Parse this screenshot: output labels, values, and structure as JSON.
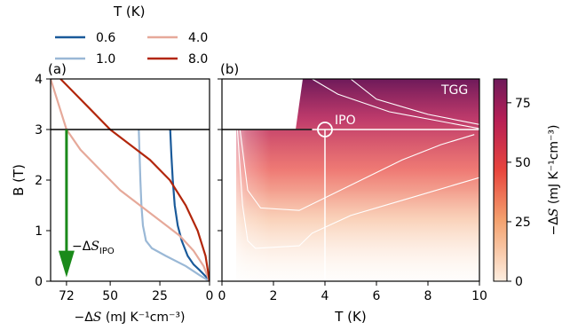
{
  "legend": {
    "title": "T (K)",
    "entries": [
      {
        "label": "0.6",
        "color": "#1a5a9a"
      },
      {
        "label": "1.0",
        "color": "#9ab8d6"
      },
      {
        "label": "4.0",
        "color": "#e6a99a"
      },
      {
        "label": "8.0",
        "color": "#b2260b"
      }
    ]
  },
  "panel_a": {
    "label": "(a)",
    "ylabel": "B (T)",
    "xlabel_prefix": "−Δ",
    "xlabel_S": "S",
    "xlabel_units": " (mJ K⁻¹cm⁻³)",
    "annotation_prefix": "−Δ",
    "annotation_S": "S",
    "annotation_sub": "IPO"
  },
  "panel_b": {
    "label": "(b)",
    "xlabel": "T (K)",
    "tgg_label": "TGG",
    "ipo_label": "IPO"
  },
  "colorbar": {
    "label_prefix": "−Δ",
    "label_S": "S",
    "label_units": " (mJ K⁻¹cm⁻³)",
    "ticks": [
      "0",
      "25",
      "50",
      "75"
    ]
  },
  "chart_data": [
    {
      "type": "line",
      "panel": "(a)",
      "xlabel": "−ΔS (mJ K⁻¹cm⁻³)",
      "ylabel": "B (T)",
      "xlim": [
        80,
        0
      ],
      "ylim": [
        0,
        4
      ],
      "xticks": [
        "72",
        "50",
        "25",
        "0"
      ],
      "yticks": [
        "0",
        "1",
        "2",
        "3",
        "4"
      ],
      "reference_line_B": 3,
      "arrow": {
        "x": 72,
        "from_B": 3,
        "to_B": 0.2,
        "color": "#1a8a1a"
      },
      "series": [
        {
          "name": "0.6",
          "color": "#1a5a9a",
          "points": [
            [
              0,
              0
            ],
            [
              2,
              0.1
            ],
            [
              5,
              0.22
            ],
            [
              8,
              0.33
            ],
            [
              11,
              0.5
            ],
            [
              14,
              0.8
            ],
            [
              16,
              1.1
            ],
            [
              17.5,
              1.5
            ],
            [
              18.5,
              2.0
            ],
            [
              19.2,
              2.5
            ],
            [
              19.8,
              3.0
            ]
          ]
        },
        {
          "name": "1.0",
          "color": "#9ab8d6",
          "points": [
            [
              0,
              0
            ],
            [
              5,
              0.12
            ],
            [
              12,
              0.3
            ],
            [
              22,
              0.5
            ],
            [
              29,
              0.65
            ],
            [
              32,
              0.8
            ],
            [
              33.5,
              1.1
            ],
            [
              34.3,
              1.5
            ],
            [
              34.8,
              2.0
            ],
            [
              35.2,
              2.5
            ],
            [
              35.6,
              3.0
            ]
          ]
        },
        {
          "name": "4.0",
          "color": "#e6a99a",
          "points": [
            [
              0,
              0
            ],
            [
              3,
              0.3
            ],
            [
              8,
              0.6
            ],
            [
              15,
              0.9
            ],
            [
              25,
              1.2
            ],
            [
              35,
              1.5
            ],
            [
              45,
              1.8
            ],
            [
              55,
              2.2
            ],
            [
              65,
              2.6
            ],
            [
              72,
              3.0
            ],
            [
              80,
              4.0
            ]
          ]
        },
        {
          "name": "8.0",
          "color": "#b2260b",
          "points": [
            [
              0,
              0
            ],
            [
              2,
              0.5
            ],
            [
              6,
              1.0
            ],
            [
              12,
              1.5
            ],
            [
              20,
              2.0
            ],
            [
              30,
              2.4
            ],
            [
              40,
              2.7
            ],
            [
              50,
              3.0
            ],
            [
              60,
              3.4
            ],
            [
              70,
              3.8
            ],
            [
              75,
              4.0
            ]
          ]
        }
      ]
    },
    {
      "type": "heatmap",
      "panel": "(b)",
      "xlabel": "T (K)",
      "xlim": [
        0,
        10
      ],
      "ylim": [
        0,
        4
      ],
      "xticks": [
        "0",
        "2",
        "4",
        "6",
        "8",
        "10"
      ],
      "reference_line_B": 3,
      "marker": {
        "T": 4,
        "B": 3,
        "label": "IPO"
      },
      "region_label": "TGG",
      "contours": [
        {
          "points": [
            [
              0.7,
              3
            ],
            [
              1.0,
              1.8
            ],
            [
              1.5,
              1.45
            ],
            [
              3,
              1.4
            ],
            [
              5,
              1.9
            ],
            [
              7,
              2.4
            ],
            [
              8.5,
              2.7
            ],
            [
              9.8,
              2.9
            ]
          ]
        },
        {
          "points": [
            [
              0.6,
              3
            ],
            [
              0.8,
              1.5
            ],
            [
              1.0,
              0.8
            ],
            [
              1.3,
              0.65
            ],
            [
              3,
              0.7
            ],
            [
              3.5,
              0.95
            ],
            [
              5,
              1.3
            ],
            [
              7,
              1.6
            ],
            [
              9,
              1.9
            ],
            [
              10,
              2.05
            ]
          ]
        },
        {
          "points": [
            [
              5,
              4.0
            ],
            [
              6,
              3.6
            ],
            [
              8,
              3.3
            ],
            [
              10,
              3.1
            ]
          ]
        },
        {
          "points": [
            [
              3.5,
              4.0
            ],
            [
              4.5,
              3.7
            ],
            [
              6.5,
              3.35
            ],
            [
              10,
              3.02
            ]
          ]
        }
      ],
      "colorbar": {
        "label": "−ΔS (mJ K⁻¹cm⁻³)",
        "range": [
          0,
          85
        ],
        "ticks": [
          0,
          25,
          50,
          75
        ]
      }
    }
  ]
}
